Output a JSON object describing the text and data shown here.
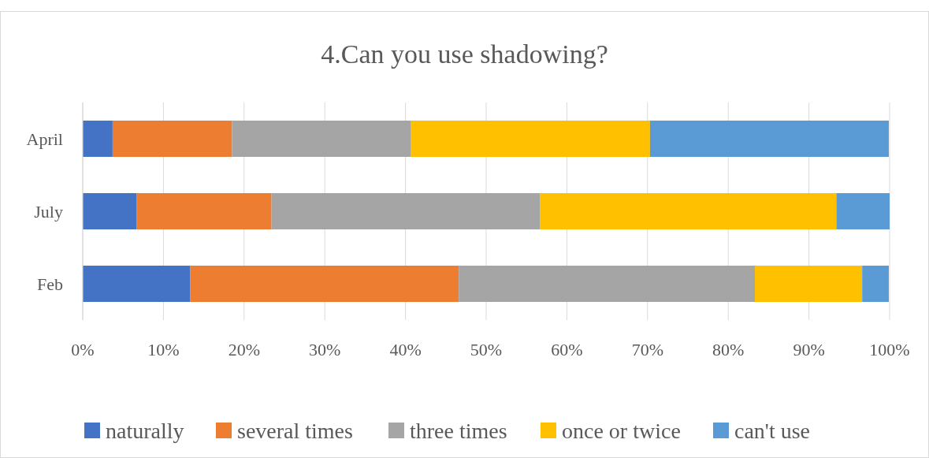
{
  "chart_data": {
    "type": "bar",
    "title": "4.Can you use shadowing?",
    "orientation": "horizontal",
    "stacked": true,
    "categories": [
      "April",
      "July",
      "Feb"
    ],
    "series": [
      {
        "name": "naturally",
        "color": "#4472c4",
        "values": [
          3.7,
          6.7,
          13.3
        ]
      },
      {
        "name": "several times",
        "color": "#ed7d31",
        "values": [
          14.8,
          16.7,
          33.3
        ]
      },
      {
        "name": "three times",
        "color": "#a5a5a5",
        "values": [
          22.2,
          33.3,
          36.7
        ]
      },
      {
        "name": "once or twice",
        "color": "#ffc000",
        "values": [
          29.6,
          36.7,
          13.3
        ]
      },
      {
        "name": "can't use",
        "color": "#5b9bd5",
        "values": [
          29.6,
          6.6,
          3.3
        ]
      }
    ],
    "xlim": [
      0,
      100
    ],
    "xticks": [
      {
        "value": 0,
        "label": "0%"
      },
      {
        "value": 10,
        "label": "10%"
      },
      {
        "value": 20,
        "label": "20%"
      },
      {
        "value": 30,
        "label": "30%"
      },
      {
        "value": 40,
        "label": "40%"
      },
      {
        "value": 50,
        "label": "50%"
      },
      {
        "value": 60,
        "label": "60%"
      },
      {
        "value": 70,
        "label": "70%"
      },
      {
        "value": 80,
        "label": "80%"
      },
      {
        "value": 90,
        "label": "90%"
      },
      {
        "value": 100,
        "label": "100%"
      }
    ],
    "grid": "x",
    "legend": "bottom"
  }
}
